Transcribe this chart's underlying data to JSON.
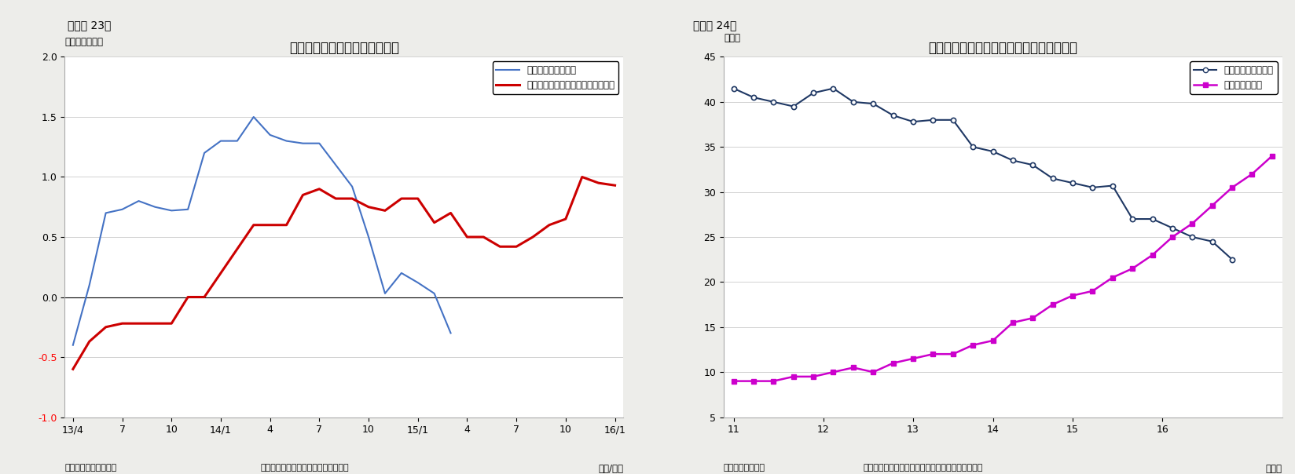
{
  "chart23": {
    "title": "日本　消費者物価上昇率の推移",
    "ylabel": "（前年比：％）",
    "xlabel": "（年/月）",
    "note_left": "（資料）総務省、日銀",
    "note_right": "（注）消費税率引き上げの影響を除く",
    "ylim": [
      -1.0,
      2.0
    ],
    "yticks": [
      -1.0,
      -0.5,
      0.0,
      0.5,
      1.0,
      1.5,
      2.0
    ],
    "xtick_labels": [
      "13/4",
      "7",
      "10",
      "14/1",
      "4",
      "7",
      "10",
      "15/1",
      "4",
      "7",
      "10",
      "16/1"
    ],
    "xtick_positions": [
      0,
      3,
      6,
      9,
      12,
      15,
      18,
      21,
      24,
      27,
      30,
      33
    ],
    "legend1": "生鮮食品を除く総合",
    "legend2": "生鮮食品及びエネルギーを除く総合",
    "blue_data": [
      -0.4,
      0.1,
      0.7,
      0.73,
      0.8,
      0.75,
      0.72,
      0.73,
      1.2,
      1.3,
      1.3,
      1.5,
      1.35,
      1.3,
      1.28,
      1.28,
      1.1,
      0.92,
      0.5,
      0.03,
      0.2,
      0.12,
      0.03,
      -0.3
    ],
    "red_data": [
      -0.6,
      -0.37,
      -0.25,
      -0.22,
      -0.22,
      -0.22,
      -0.22,
      0.0,
      0.0,
      0.2,
      0.4,
      0.6,
      0.6,
      0.6,
      0.85,
      0.9,
      0.82,
      0.82,
      0.75,
      0.72,
      0.82,
      0.82,
      0.62,
      0.7,
      0.5,
      0.5,
      0.42,
      0.42,
      0.5,
      0.6,
      0.65,
      1.0,
      0.95,
      0.93
    ]
  },
  "chart24": {
    "title": "預金取扱機関と日銀の日本国債保有シェア",
    "ylabel": "（％）",
    "xlabel": "（年）",
    "note_left": "（資料）日本銀行",
    "note_right": "（注）国債は、国庫短期証券と国債・財投債の合計",
    "ylim": [
      5,
      45
    ],
    "yticks": [
      5,
      10,
      15,
      20,
      25,
      30,
      35,
      40,
      45
    ],
    "xtick_labels": [
      "11",
      "12",
      "13",
      "14",
      "15",
      "16"
    ],
    "legend1": "預金取扱機関シェア",
    "legend2": "日本銀行シェア",
    "deposit_data": [
      41.5,
      40.5,
      40.0,
      39.5,
      41.0,
      41.5,
      40.0,
      39.8,
      38.5,
      37.8,
      38.0,
      38.0,
      35.0,
      34.5,
      33.5,
      33.0,
      31.5,
      31.0,
      30.5,
      30.7,
      27.0,
      27.0,
      26.0,
      25.0,
      24.5,
      22.5
    ],
    "boj_data": [
      9.0,
      9.0,
      9.0,
      9.5,
      9.5,
      10.0,
      10.5,
      10.0,
      11.0,
      11.5,
      12.0,
      12.0,
      13.0,
      13.5,
      15.5,
      16.0,
      17.5,
      18.5,
      19.0,
      20.5,
      21.5,
      23.0,
      25.0,
      26.5,
      28.5,
      30.5,
      32.0,
      34.0
    ]
  },
  "fig23_label": "（図表 23）",
  "fig24_label": "（図表 24）",
  "bg_color": "#ededea"
}
